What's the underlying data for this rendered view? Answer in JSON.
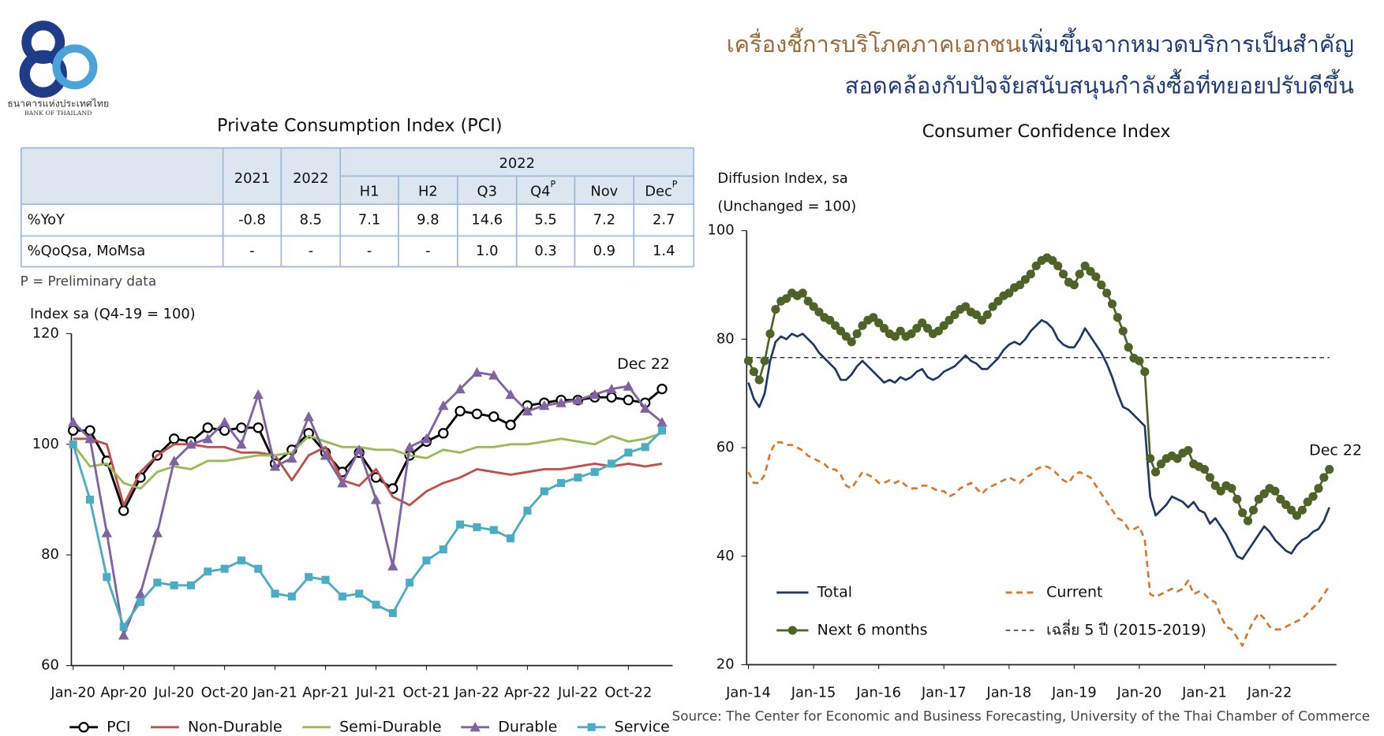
{
  "header": {
    "title": [
      [
        "เครื่องชี้การบริโภคภาคเอกชน",
        "เพิ่มขึ้นจากหมวดบริการเป็นสำคัญ"
      ],
      [
        "สอดคล้องกับปัจจัยสนับสนุนกำลังซื้อที่ทยอยปรับดีขึ้น"
      ]
    ],
    "logo_text": [
      "ธนาคารแห่งประเทศไทย",
      "BANK OF THAILAND"
    ]
  },
  "table": {
    "group_header": "2022",
    "columns": [
      "2021",
      "2022",
      "H1",
      "H2",
      "Q3",
      {
        "label": "Q4",
        "sup": "P"
      },
      "Nov",
      {
        "label": "Dec",
        "sup": "P"
      }
    ],
    "rows": [
      {
        "label": "%YoY",
        "cells": [
          "-0.8",
          "8.5",
          "7.1",
          "9.8",
          "14.6",
          "5.5",
          "7.2",
          "2.7"
        ]
      },
      {
        "label": "%QoQsa, MoMsa",
        "cells": [
          "-",
          "-",
          "-",
          "-",
          "1.0",
          "0.3",
          "0.9",
          "1.4"
        ]
      }
    ],
    "footnote": "P = Preliminary data"
  },
  "chart_data": [
    {
      "type": "line",
      "title": "Private Consumption Index (PCI)",
      "y_label": [
        "Index sa (Q4-19 = 100)"
      ],
      "categories": [
        "Jan-20",
        null,
        null,
        "Apr-20",
        null,
        null,
        "Jul-20",
        null,
        null,
        "Oct-20",
        null,
        null,
        "Jan-21",
        null,
        null,
        "Apr-21",
        null,
        null,
        "Jul-21",
        null,
        null,
        "Oct-21",
        null,
        null,
        "Jan-22",
        null,
        null,
        "Apr-22",
        null,
        null,
        "Jul-22",
        null,
        null,
        "Oct-22",
        null,
        null
      ],
      "series": [
        {
          "name": "PCI",
          "color": "#000000",
          "marker": "circle-open",
          "values": [
            102.5,
            102.5,
            97,
            88,
            94,
            98,
            101,
            100.5,
            103,
            102.5,
            103,
            103,
            96.5,
            99,
            102,
            98.5,
            95,
            98.5,
            94,
            92,
            98,
            100.5,
            102,
            106,
            105.5,
            105,
            103.5,
            107,
            107.5,
            108,
            108,
            108.5,
            108.5,
            108,
            107.5,
            110
          ]
        },
        {
          "name": "Non-Durable",
          "color": "#c0504d",
          "marker": "none",
          "values": [
            101,
            101,
            100,
            89,
            95,
            98,
            100,
            100,
            99.5,
            99.5,
            98.5,
            98.5,
            98,
            93.5,
            98,
            99.5,
            93.5,
            92.5,
            95.5,
            90.5,
            89,
            91.5,
            93,
            94,
            95.5,
            95,
            94.5,
            95,
            95.5,
            95.5,
            96,
            96.5,
            96,
            96.5,
            96,
            96.5
          ]
        },
        {
          "name": "Semi-Durable",
          "color": "#9bbb59",
          "marker": "none",
          "values": [
            100,
            96,
            96.5,
            93,
            92,
            95,
            96,
            95.5,
            97,
            97,
            97.5,
            98,
            98,
            98.5,
            101.5,
            100.5,
            99.5,
            99.5,
            99,
            99,
            98,
            97.5,
            99,
            98.5,
            99.5,
            99.5,
            100,
            100,
            100.5,
            101,
            100.5,
            100,
            101.5,
            100.5,
            101,
            102
          ]
        },
        {
          "name": "Durable",
          "color": "#8064a2",
          "marker": "triangle",
          "values": [
            104,
            101,
            84,
            65.5,
            73,
            84,
            97,
            100,
            101,
            104,
            100,
            109,
            96,
            97.5,
            105,
            98,
            93,
            99,
            90,
            78,
            99.5,
            101,
            107,
            110,
            113,
            112.5,
            109,
            106,
            107,
            107.5,
            108,
            109,
            110,
            110.5,
            106.5,
            104
          ]
        },
        {
          "name": "Service",
          "color": "#4bacc6",
          "marker": "square",
          "values": [
            100,
            90,
            76,
            67,
            71.5,
            75,
            74.5,
            74.5,
            77,
            77.5,
            79,
            77.5,
            73,
            72.5,
            76,
            75.5,
            72.5,
            73,
            71,
            69.5,
            75,
            79,
            81,
            85.5,
            85,
            84.5,
            83,
            88,
            91.5,
            93,
            94,
            95,
            96.5,
            98.5,
            99.5,
            102.5
          ]
        }
      ],
      "ylim": [
        60,
        120
      ],
      "yticks": [
        60,
        80,
        100,
        120
      ],
      "grid": false,
      "annotations": [
        "Dec 22"
      ]
    },
    {
      "type": "line",
      "title": "Consumer Confidence Index",
      "y_label": [
        "Diffusion Index, sa",
        "(Unchanged = 100)"
      ],
      "categories": [
        "Jan-14",
        null,
        null,
        null,
        null,
        null,
        null,
        null,
        null,
        null,
        null,
        null,
        "Jan-15",
        null,
        null,
        null,
        null,
        null,
        null,
        null,
        null,
        null,
        null,
        null,
        "Jan-16",
        null,
        null,
        null,
        null,
        null,
        null,
        null,
        null,
        null,
        null,
        null,
        "Jan-17",
        null,
        null,
        null,
        null,
        null,
        null,
        null,
        null,
        null,
        null,
        null,
        "Jan-18",
        null,
        null,
        null,
        null,
        null,
        null,
        null,
        null,
        null,
        null,
        null,
        "Jan-19",
        null,
        null,
        null,
        null,
        null,
        null,
        null,
        null,
        null,
        null,
        null,
        "Jan-20",
        null,
        null,
        null,
        null,
        null,
        null,
        null,
        null,
        null,
        null,
        null,
        "Jan-21",
        null,
        null,
        null,
        null,
        null,
        null,
        null,
        null,
        null,
        null,
        null,
        "Jan-22",
        null,
        null,
        null,
        null,
        null,
        null,
        null,
        null,
        null,
        null,
        null
      ],
      "series": [
        {
          "name": "Total",
          "color": "#1f3864",
          "marker": "none",
          "values": [
            72,
            69,
            67.5,
            70,
            76,
            79.5,
            80.5,
            80,
            81,
            80.5,
            81,
            80,
            79,
            77.5,
            76.5,
            75.5,
            74.5,
            72.5,
            72.5,
            73.5,
            75,
            76,
            75,
            74,
            73,
            72,
            72.5,
            72,
            73,
            72.5,
            73,
            74,
            74.5,
            73,
            72.5,
            73,
            74,
            74.5,
            75,
            76,
            77,
            76,
            75.5,
            74.5,
            74.5,
            75.5,
            76.5,
            78,
            79,
            79.5,
            79,
            80,
            81.5,
            82.5,
            83.5,
            83,
            82,
            80,
            79,
            78.5,
            78.5,
            80,
            82,
            80.5,
            79,
            77.5,
            75.5,
            73,
            70,
            67.5,
            67,
            66,
            65,
            64,
            51,
            47.5,
            48.5,
            49.5,
            51,
            50.5,
            50,
            49,
            50,
            48.5,
            48,
            46,
            47,
            45.5,
            44,
            42,
            40,
            39.5,
            41,
            42.5,
            44,
            45.5,
            44.5,
            43,
            42,
            41,
            40.5,
            42,
            43,
            43.5,
            44.5,
            45,
            46.5,
            49
          ]
        },
        {
          "name": "Current",
          "color": "#d9782d",
          "marker": "none",
          "dash": true,
          "values": [
            55.5,
            53.5,
            53.5,
            55,
            59,
            61,
            61,
            60.5,
            60.5,
            60,
            59.5,
            58.5,
            58,
            57.5,
            57,
            56,
            56,
            55,
            53,
            52.5,
            54,
            55.5,
            55,
            54.5,
            53.5,
            53.5,
            54,
            53.5,
            54,
            53,
            52.5,
            52.5,
            53,
            53,
            52.5,
            52,
            52,
            51,
            51.5,
            52.5,
            53,
            53.5,
            52.5,
            51.5,
            52.5,
            53,
            53.5,
            54,
            54.5,
            54,
            53.5,
            54.5,
            55,
            56,
            56.5,
            56.5,
            56,
            55,
            54,
            53.5,
            55,
            55.5,
            55,
            54.5,
            53,
            51.5,
            50,
            48.5,
            47,
            46.5,
            45,
            45,
            45.5,
            43,
            33,
            32.5,
            33,
            33.5,
            34,
            33.5,
            34,
            35.5,
            33,
            33.5,
            33,
            32,
            31.5,
            29,
            27,
            26.5,
            25,
            23.5,
            26,
            28,
            29.5,
            28.5,
            27,
            26.5,
            26.5,
            27,
            27.5,
            28,
            28.5,
            29.5,
            30.5,
            31.5,
            33,
            34.5
          ]
        },
        {
          "name": "Next 6 months",
          "color": "#4f6228",
          "marker": "circle",
          "values": [
            76,
            74,
            72.5,
            76,
            81,
            85.5,
            87,
            87.5,
            88.5,
            88,
            88.5,
            87,
            86,
            85,
            84,
            83.5,
            82.5,
            81.5,
            80.5,
            79.5,
            81,
            82.5,
            83.5,
            84,
            83,
            82,
            81,
            80.5,
            81.5,
            80.5,
            81,
            82,
            83,
            82,
            81,
            81.5,
            82.5,
            83.5,
            84.5,
            85.5,
            86,
            85,
            84.5,
            83.5,
            84.5,
            86,
            87,
            88,
            88.5,
            89.5,
            90,
            91,
            92,
            93.5,
            94.5,
            95,
            94.5,
            93.5,
            92,
            90.5,
            90,
            92,
            93.5,
            92.5,
            91.5,
            90,
            88.5,
            86.5,
            84,
            81.5,
            78.5,
            76.5,
            76,
            74,
            58,
            55.5,
            57,
            58,
            58.5,
            58,
            59,
            59.5,
            57,
            56.5,
            56,
            54.5,
            53,
            52,
            53,
            52.5,
            50.5,
            48,
            46.5,
            48.5,
            50.5,
            51.5,
            52.5,
            52,
            50.5,
            49.5,
            48.5,
            47.5,
            48.5,
            50,
            51,
            52.5,
            54.5,
            56
          ]
        }
      ],
      "reference_lines": [
        {
          "name": "เฉลี่ย 5 ปี (2015-2019)",
          "value": 76.6,
          "color": "#222222"
        }
      ],
      "ylim": [
        20,
        100
      ],
      "yticks": [
        20,
        40,
        60,
        80,
        100
      ],
      "grid": false,
      "annotations": [
        "Dec 22"
      ],
      "source": "Source: The Center for Economic and Business Forecasting, University of the Thai Chamber of Commerce"
    }
  ]
}
